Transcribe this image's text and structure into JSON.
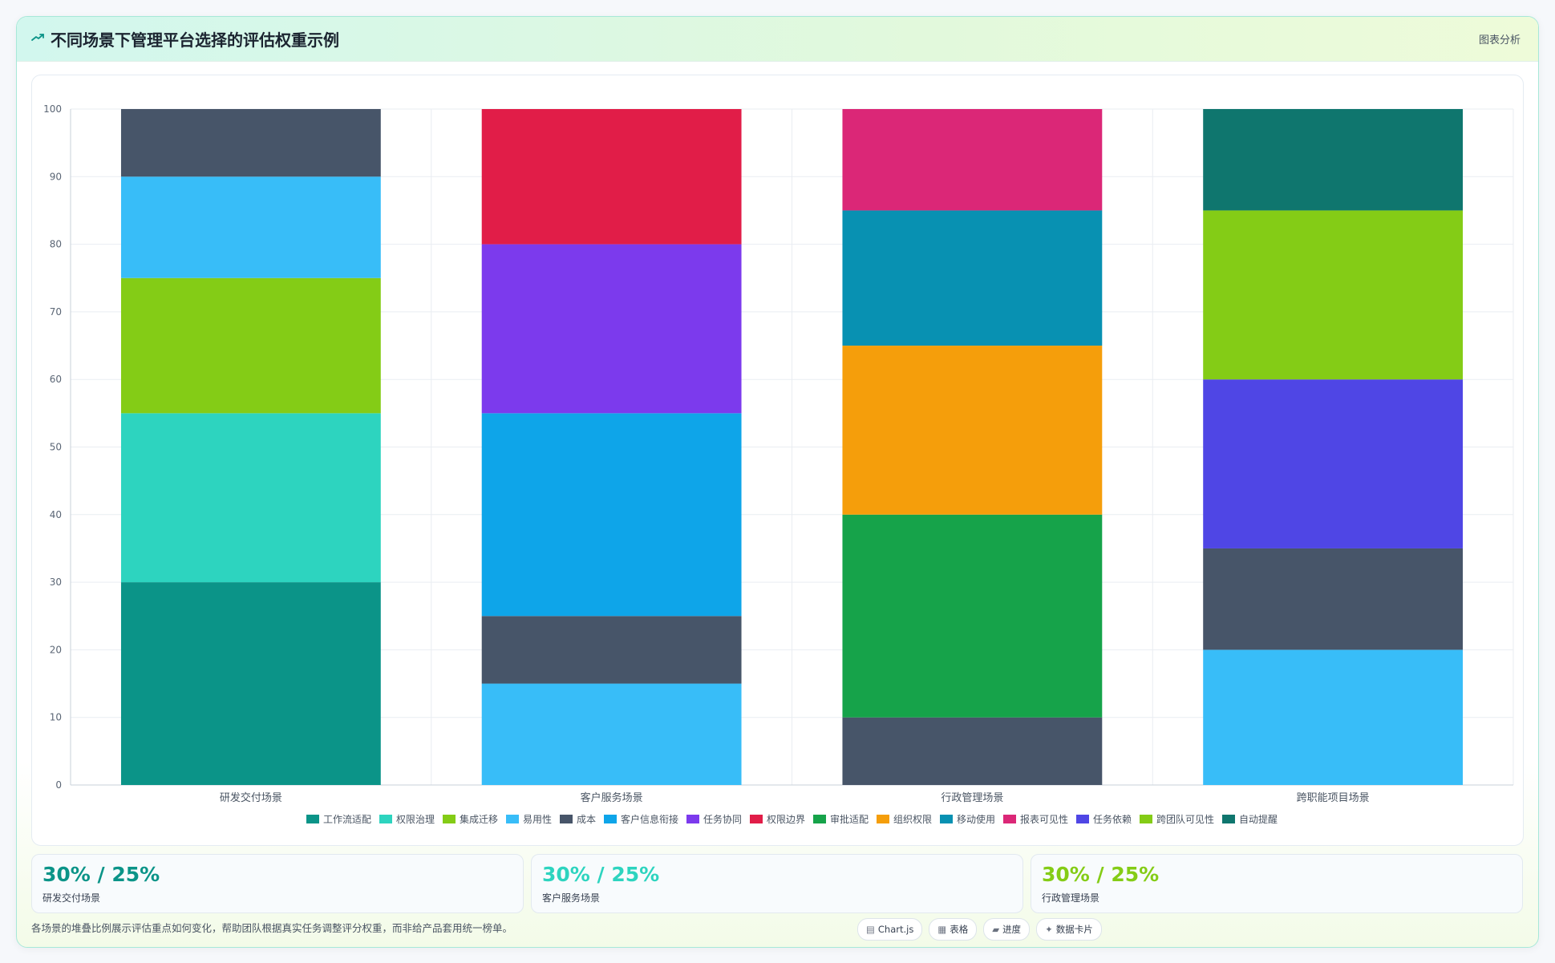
{
  "header": {
    "title": "不同场景下管理平台选择的评估权重示例",
    "link": "图表分析",
    "icon": "trend-icon"
  },
  "chart_data": {
    "type": "bar",
    "stacked": true,
    "categories": [
      "研发交付场景",
      "客户服务场景",
      "行政管理场景",
      "跨职能项目场景"
    ],
    "ylim": [
      0,
      100
    ],
    "yticks": [
      "0",
      "10",
      "20",
      "30",
      "40",
      "50",
      "60",
      "70",
      "80",
      "90",
      "100"
    ],
    "grid": true,
    "legend_position": "bottom",
    "series": [
      {
        "name": "工作流适配",
        "color": "#0b9488",
        "values": [
          30,
          null,
          null,
          null
        ]
      },
      {
        "name": "权限治理",
        "color": "#2dd4bf",
        "values": [
          25,
          null,
          null,
          null
        ]
      },
      {
        "name": "集成迁移",
        "color": "#84cc16",
        "values": [
          20,
          null,
          null,
          null
        ]
      },
      {
        "name": "易用性",
        "color": "#38bdf8",
        "values": [
          15,
          15,
          null,
          20
        ]
      },
      {
        "name": "成本",
        "color": "#475569",
        "values": [
          10,
          10,
          10,
          15
        ]
      },
      {
        "name": "客户信息衔接",
        "color": "#0ea5e9",
        "values": [
          null,
          30,
          null,
          null
        ]
      },
      {
        "name": "任务协同",
        "color": "#7c3aed",
        "values": [
          null,
          25,
          null,
          null
        ]
      },
      {
        "name": "权限边界",
        "color": "#e11d48",
        "values": [
          null,
          20,
          null,
          null
        ]
      },
      {
        "name": "审批适配",
        "color": "#16a34a",
        "values": [
          null,
          null,
          30,
          null
        ]
      },
      {
        "name": "组织权限",
        "color": "#f59e0b",
        "values": [
          null,
          null,
          25,
          null
        ]
      },
      {
        "name": "移动使用",
        "color": "#0891b2",
        "values": [
          null,
          null,
          20,
          null
        ]
      },
      {
        "name": "报表可见性",
        "color": "#db2777",
        "values": [
          null,
          null,
          15,
          null
        ]
      },
      {
        "name": "任务依赖",
        "color": "#4f46e5",
        "values": [
          null,
          null,
          null,
          25
        ]
      },
      {
        "name": "跨团队可见性",
        "color": "#84cc16",
        "values": [
          null,
          null,
          null,
          25
        ]
      },
      {
        "name": "自动提醒",
        "color": "#0f766e",
        "values": [
          null,
          null,
          null,
          15
        ]
      }
    ]
  },
  "stats": [
    {
      "value": "30% / 25%",
      "label": "研发交付场景",
      "color": "#0b9488"
    },
    {
      "value": "30% / 25%",
      "label": "客户服务场景",
      "color": "#2dd4bf"
    },
    {
      "value": "30% / 25%",
      "label": "行政管理场景",
      "color": "#84cc16"
    }
  ],
  "footer": {
    "note": "各场景的堆叠比例展示评估重点如何变化，帮助团队根据真实任务调整评分权重，而非给产品套用统一榜单。",
    "chips": [
      {
        "icon": "▤",
        "label": "Chart.js"
      },
      {
        "icon": "▦",
        "label": "表格"
      },
      {
        "icon": "▰",
        "label": "进度"
      },
      {
        "icon": "✦",
        "label": "数据卡片"
      }
    ]
  }
}
